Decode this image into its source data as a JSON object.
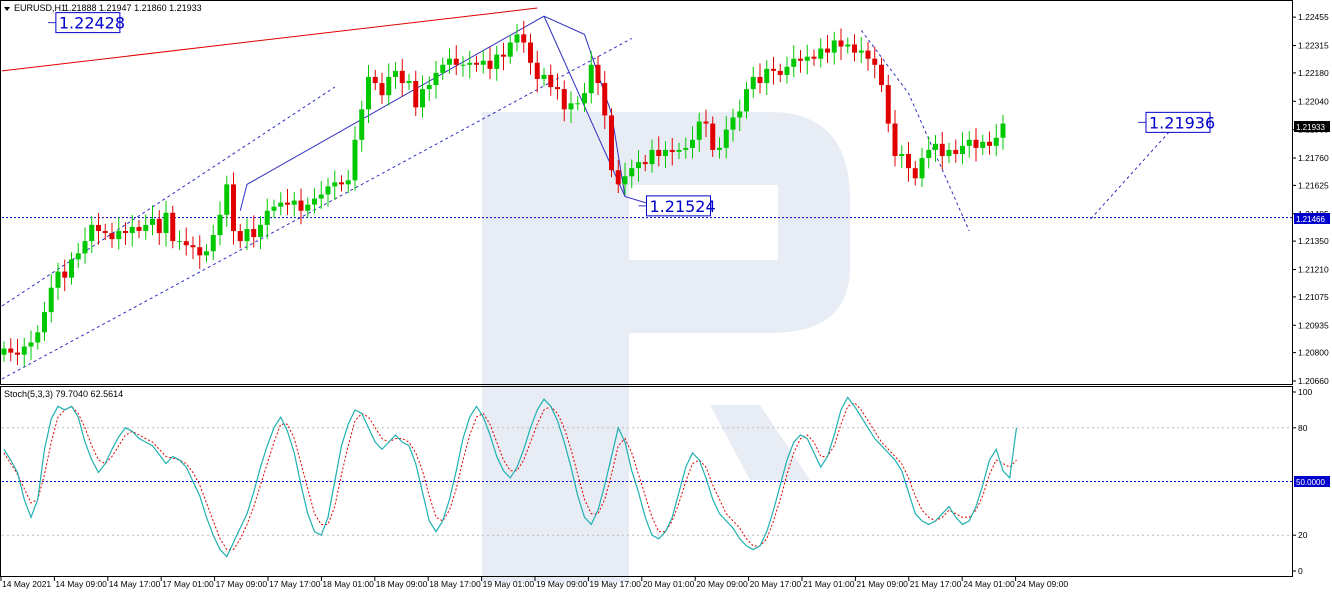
{
  "header": {
    "symbol_label": "EURUSD,H1",
    "ohlc": "1.21888 1.21947 1.21860 1.21933"
  },
  "indicator": {
    "label": "Stoch(5,3,3) 79.7040 62.5614",
    "level_tag": "50.0000"
  },
  "price_tags": {
    "current": "1.21933",
    "level": "1.21466"
  },
  "annotations": [
    {
      "text": "1.22428",
      "x": 6.5,
      "y": 1.22428
    },
    {
      "text": "1.21524",
      "x": 94,
      "y": 1.21524
    },
    {
      "text": "1.21936",
      "x": 168,
      "y": 1.21936
    }
  ],
  "colors": {
    "bull": "#00c800",
    "bear": "#e00000",
    "stoch_main": "#20b0b0",
    "stoch_signal": "#e00000",
    "trend_blue": "#3030c0",
    "trend_red": "#e00000",
    "watermark": "#e8ecf4"
  },
  "chart_data": [
    {
      "type": "candlestick",
      "symbol": "EURUSD",
      "timeframe": "H1",
      "ylim": [
        1.2066,
        1.2251
      ],
      "y_ticks": [
        "1.22455",
        "1.22315",
        "1.22180",
        "1.22040",
        "1.21900",
        "1.21760",
        "1.21625",
        "1.21485",
        "1.21350",
        "1.21210",
        "1.21075",
        "1.20935",
        "1.20800",
        "1.20660"
      ],
      "x_ticks": [
        "14 May 2021",
        "14 May 09:00",
        "14 May 17:00",
        "17 May 01:00",
        "17 May 09:00",
        "17 May 17:00",
        "18 May 01:00",
        "18 May 09:00",
        "18 May 17:00",
        "19 May 01:00",
        "19 May 09:00",
        "19 May 17:00",
        "20 May 01:00",
        "20 May 09:00",
        "20 May 17:00",
        "21 May 01:00",
        "21 May 09:00",
        "21 May 17:00",
        "24 May 01:00",
        "24 May 09:00"
      ],
      "horizontal_level": 1.21466,
      "close_series": [
        1.2082,
        1.208,
        1.2079,
        1.2083,
        1.2085,
        1.209,
        1.21,
        1.2112,
        1.212,
        1.2117,
        1.2126,
        1.2129,
        1.2135,
        1.2143,
        1.214,
        1.2139,
        1.2136,
        1.214,
        1.2139,
        1.2142,
        1.214,
        1.2143,
        1.2146,
        1.2139,
        1.2149,
        1.2135,
        1.2135,
        1.2133,
        1.2132,
        1.2128,
        1.213,
        1.2138,
        1.2148,
        1.2163,
        1.214,
        1.2135,
        1.2141,
        1.2137,
        1.2143,
        1.215,
        1.2152,
        1.2154,
        1.2153,
        1.2155,
        1.215,
        1.2153,
        1.2156,
        1.2158,
        1.2162,
        1.2164,
        1.2163,
        1.2165,
        1.2185,
        1.22,
        1.2216,
        1.2213,
        1.2207,
        1.2216,
        1.2219,
        1.2213,
        1.2214,
        1.2201,
        1.221,
        1.2212,
        1.2218,
        1.2222,
        1.2225,
        1.2222,
        1.2222,
        1.2223,
        1.2222,
        1.2224,
        1.222,
        1.2227,
        1.2226,
        1.2233,
        1.2237,
        1.2233,
        1.2223,
        1.2215,
        1.2217,
        1.2211,
        1.221,
        1.22,
        1.2203,
        1.2203,
        1.2208,
        1.2222,
        1.2213,
        1.2197,
        1.217,
        1.2163,
        1.2167,
        1.2171,
        1.2174,
        1.2173,
        1.218,
        1.2177,
        1.218,
        1.2179,
        1.218,
        1.2181,
        1.2185,
        1.2194,
        1.2193,
        1.218,
        1.2181,
        1.219,
        1.2196,
        1.2199,
        1.221,
        1.2216,
        1.2213,
        1.222,
        1.2219,
        1.2217,
        1.2221,
        1.2225,
        1.2224,
        1.2226,
        1.2225,
        1.223,
        1.2228,
        1.2234,
        1.2231,
        1.2232,
        1.2228,
        1.2229,
        1.2225,
        1.2222,
        1.2212,
        1.2193,
        1.2177,
        1.2178,
        1.2171,
        1.2166,
        1.2176,
        1.218,
        1.2183,
        1.2177,
        1.218,
        1.2178,
        1.2182,
        1.2185,
        1.2181,
        1.2184,
        1.2182,
        1.2186,
        1.2193
      ]
    },
    {
      "type": "line",
      "name": "Stoch(5,3,3)",
      "ylim": [
        0,
        100
      ],
      "y_ticks": [
        "100",
        "80",
        "50.0000",
        "20",
        "0"
      ],
      "levels": [
        80,
        50,
        20
      ],
      "main": [
        68,
        62,
        55,
        40,
        30,
        40,
        68,
        85,
        92,
        90,
        92,
        86,
        72,
        62,
        55,
        60,
        68,
        75,
        80,
        78,
        74,
        72,
        70,
        65,
        60,
        64,
        62,
        58,
        50,
        42,
        30,
        20,
        12,
        8,
        16,
        24,
        32,
        44,
        58,
        70,
        80,
        86,
        78,
        66,
        48,
        32,
        22,
        20,
        30,
        50,
        70,
        82,
        90,
        88,
        80,
        72,
        68,
        72,
        76,
        72,
        70,
        60,
        44,
        28,
        22,
        28,
        40,
        56,
        74,
        86,
        92,
        86,
        76,
        64,
        56,
        52,
        58,
        68,
        80,
        90,
        96,
        92,
        84,
        72,
        58,
        42,
        30,
        26,
        34,
        48,
        64,
        80,
        72,
        56,
        44,
        30,
        20,
        18,
        22,
        30,
        44,
        58,
        66,
        62,
        52,
        40,
        32,
        28,
        24,
        18,
        14,
        12,
        14,
        22,
        34,
        48,
        62,
        72,
        76,
        74,
        66,
        58,
        64,
        76,
        90,
        97,
        92,
        86,
        80,
        74,
        70,
        66,
        62,
        56,
        44,
        32,
        28,
        26,
        28,
        32,
        36,
        30,
        26,
        28,
        36,
        48,
        62,
        68,
        56,
        52,
        80
      ],
      "signal": [
        66,
        60,
        54,
        46,
        38,
        40,
        54,
        72,
        86,
        90,
        92,
        88,
        80,
        70,
        62,
        60,
        64,
        70,
        76,
        78,
        76,
        74,
        72,
        68,
        64,
        63,
        62,
        60,
        55,
        48,
        38,
        28,
        18,
        12,
        12,
        18,
        26,
        36,
        48,
        60,
        72,
        82,
        82,
        74,
        60,
        46,
        32,
        26,
        26,
        36,
        54,
        70,
        84,
        88,
        86,
        80,
        74,
        72,
        74,
        74,
        72,
        66,
        56,
        42,
        30,
        28,
        34,
        46,
        62,
        76,
        86,
        88,
        82,
        72,
        62,
        56,
        56,
        62,
        72,
        82,
        90,
        92,
        88,
        80,
        68,
        54,
        40,
        32,
        32,
        40,
        54,
        70,
        74,
        66,
        54,
        42,
        30,
        22,
        22,
        28,
        38,
        50,
        60,
        62,
        58,
        48,
        40,
        32,
        28,
        24,
        18,
        14,
        14,
        18,
        28,
        40,
        54,
        66,
        74,
        76,
        72,
        64,
        64,
        70,
        82,
        92,
        94,
        90,
        84,
        78,
        72,
        68,
        64,
        60,
        52,
        42,
        34,
        30,
        28,
        30,
        34,
        32,
        30,
        30,
        34,
        42,
        54,
        62,
        60,
        58,
        62
      ]
    }
  ]
}
